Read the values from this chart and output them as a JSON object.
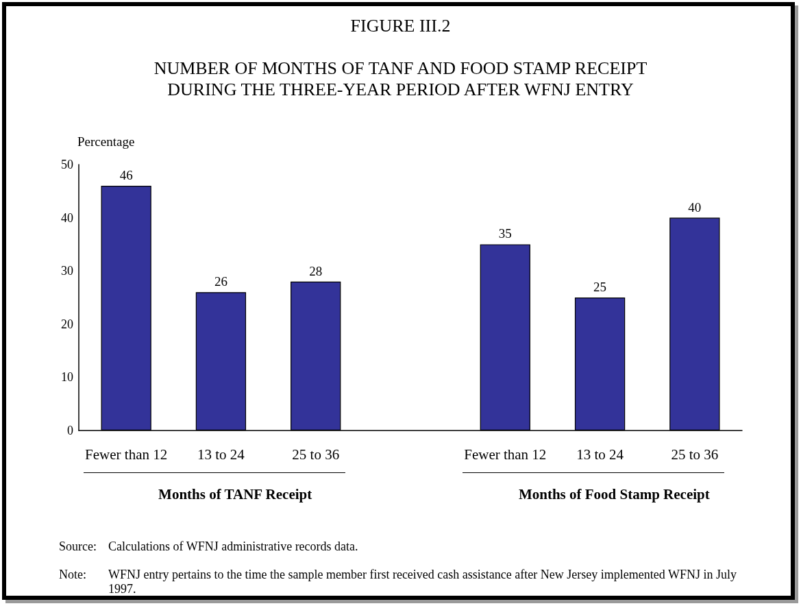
{
  "chart_data": {
    "type": "bar",
    "title": "FIGURE III.2",
    "subtitle": "NUMBER OF MONTHS OF TANF AND FOOD STAMP RECEIPT\nDURING THE THREE-YEAR PERIOD AFTER WFNJ ENTRY",
    "ylabel": "Percentage",
    "categories": [
      "Fewer than 12",
      "13 to 24",
      "25 to 36",
      null,
      "Fewer than 12",
      "13 to 24",
      "25 to 36"
    ],
    "values": [
      46,
      26,
      28,
      null,
      35,
      25,
      40
    ],
    "color": "#333399",
    "ylim": [
      0,
      50
    ],
    "yticks": [
      0,
      10,
      20,
      30,
      40,
      50
    ],
    "grid": false,
    "data_labels": true,
    "annotations": [
      "Months of TANF Receipt",
      "Months of Food Stamp Receipt",
      "Source: Calculations of WFNJ administrative records data.",
      "Note: WFNJ entry pertains to the time the sample member first received cash assistance after New Jersey implemented WFNJ in July 1997."
    ]
  }
}
